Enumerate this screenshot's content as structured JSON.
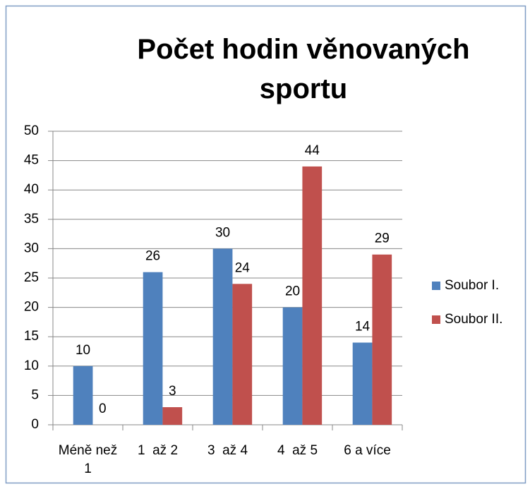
{
  "chart_data": {
    "type": "bar",
    "title": "Počet hodin věnovaných sportu",
    "categories": [
      "Méně než 1",
      "1  až 2",
      "3  až 4",
      "4  až 5",
      "6 a více"
    ],
    "series": [
      {
        "name": "Soubor I.",
        "color": "#4f81bd",
        "values": [
          10,
          26,
          30,
          20,
          14
        ]
      },
      {
        "name": "Soubor II.",
        "color": "#c0504d",
        "values": [
          0,
          3,
          24,
          44,
          29
        ]
      }
    ],
    "ylim": [
      0,
      50
    ],
    "yticks": [
      0,
      5,
      10,
      15,
      20,
      25,
      30,
      35,
      40,
      45,
      50
    ],
    "grid": true,
    "legend": "right"
  }
}
